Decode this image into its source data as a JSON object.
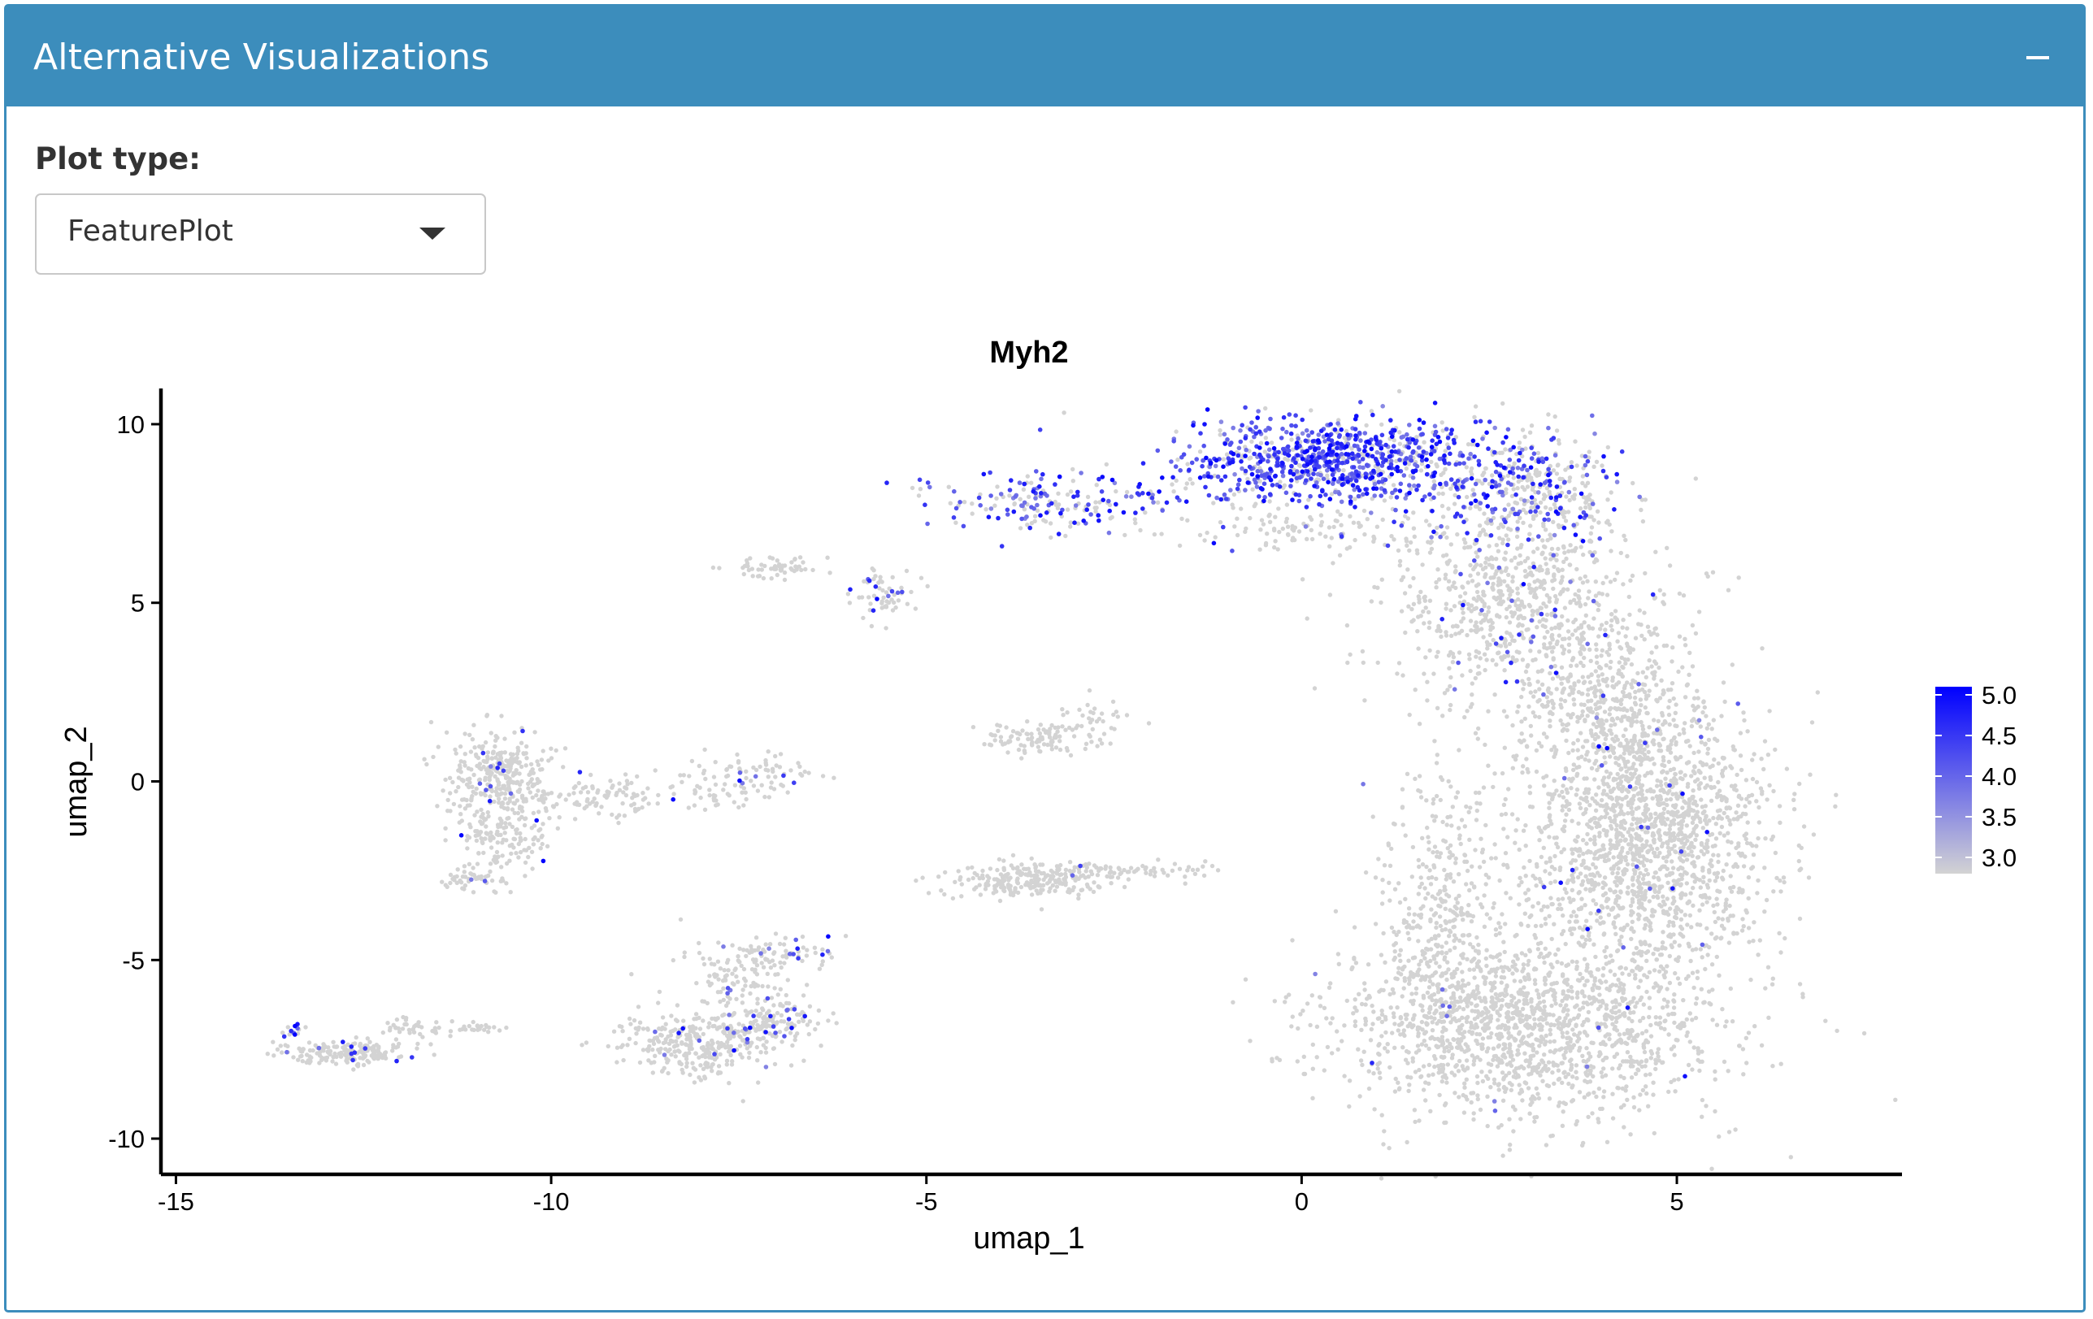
{
  "box": {
    "title": "Alternative Visualizations",
    "collapse_icon": "minus-icon",
    "header_color": "#3c8dbc"
  },
  "controls": {
    "plot_type_label": "Plot type:",
    "plot_type_value": "FeaturePlot",
    "dropdown_icon": "caret-down-icon"
  },
  "chart_data": {
    "type": "scatter",
    "title": "Myh2",
    "xlabel": "umap_1",
    "ylabel": "umap_2",
    "xlim": [
      -15.2,
      8.0
    ],
    "ylim": [
      -11.0,
      11.0
    ],
    "x_ticks": [
      -15,
      -10,
      -5,
      0,
      5
    ],
    "y_ticks": [
      10,
      5,
      0,
      -5,
      -10
    ],
    "x_tick_labels": [
      "-15",
      "-10",
      "-5",
      "0",
      "5"
    ],
    "y_tick_labels": [
      "10",
      "5",
      "0",
      "-5",
      "-10"
    ],
    "grid": false,
    "legend_placement": "right",
    "color_scale": {
      "low_color": "#d3d3d3",
      "high_color": "#0000ff",
      "min": 2.8,
      "max": 5.1,
      "ticks": [
        5.0,
        4.5,
        4.0,
        3.5,
        3.0
      ],
      "tick_labels": [
        "5.0",
        "4.5",
        "4.0",
        "3.5",
        "3.0"
      ]
    },
    "clusters": [
      {
        "cx": 0.5,
        "cy": 9.0,
        "sx": 0.95,
        "sy": 0.6,
        "n": 900,
        "expr_frac": 0.75
      },
      {
        "cx": -3.2,
        "cy": 7.8,
        "sx": 0.9,
        "sy": 0.4,
        "n": 200,
        "expr_frac": 0.6
      },
      {
        "cx": 3.0,
        "cy": 8.3,
        "sx": 0.6,
        "sy": 0.8,
        "n": 350,
        "expr_frac": 0.4
      },
      {
        "cx": 2.9,
        "cy": 5.0,
        "sx": 0.9,
        "sy": 1.4,
        "n": 800,
        "expr_frac": 0.05
      },
      {
        "cx": 4.1,
        "cy": 2.0,
        "sx": 0.6,
        "sy": 1.2,
        "n": 500,
        "expr_frac": 0.02
      },
      {
        "cx": 4.6,
        "cy": -1.7,
        "sx": 0.85,
        "sy": 1.8,
        "n": 1600,
        "expr_frac": 0.01
      },
      {
        "cx": 3.0,
        "cy": -6.8,
        "sx": 1.3,
        "sy": 1.3,
        "n": 1600,
        "expr_frac": 0.005
      },
      {
        "cx": 1.9,
        "cy": -3.5,
        "sx": 0.4,
        "sy": 2.0,
        "n": 350,
        "expr_frac": 0.005
      },
      {
        "cx": -7.0,
        "cy": 6.0,
        "sx": 0.35,
        "sy": 0.15,
        "n": 60,
        "expr_frac": 0.0
      },
      {
        "cx": -5.6,
        "cy": 5.2,
        "sx": 0.2,
        "sy": 0.35,
        "n": 60,
        "expr_frac": 0.15
      },
      {
        "cx": -10.7,
        "cy": 0.2,
        "sx": 0.35,
        "sy": 0.6,
        "n": 300,
        "expr_frac": 0.02
      },
      {
        "cx": -10.6,
        "cy": -1.5,
        "sx": 0.3,
        "sy": 0.6,
        "n": 150,
        "expr_frac": 0.02
      },
      {
        "cx": -11.1,
        "cy": -2.8,
        "sx": 0.25,
        "sy": 0.2,
        "n": 40,
        "expr_frac": 0.1
      },
      {
        "cx": -9.2,
        "cy": -0.4,
        "sx": 0.8,
        "sy": 0.3,
        "n": 120,
        "expr_frac": 0.02
      },
      {
        "cx": -7.5,
        "cy": 0.2,
        "sx": 0.5,
        "sy": 0.3,
        "n": 90,
        "expr_frac": 0.05
      },
      {
        "cx": -3.6,
        "cy": -2.8,
        "sx": 0.55,
        "sy": 0.25,
        "n": 220,
        "expr_frac": 0.02
      },
      {
        "cx": -2.6,
        "cy": -2.5,
        "sx": 0.7,
        "sy": 0.12,
        "n": 80,
        "expr_frac": 0.0
      },
      {
        "cx": -3.5,
        "cy": 1.2,
        "sx": 0.4,
        "sy": 0.2,
        "n": 100,
        "expr_frac": 0.0
      },
      {
        "cx": -2.8,
        "cy": 1.8,
        "sx": 0.3,
        "sy": 0.3,
        "n": 30,
        "expr_frac": 0.0
      },
      {
        "cx": -8.1,
        "cy": -7.3,
        "sx": 0.5,
        "sy": 0.45,
        "n": 300,
        "expr_frac": 0.03
      },
      {
        "cx": -7.2,
        "cy": -6.8,
        "sx": 0.4,
        "sy": 0.4,
        "n": 150,
        "expr_frac": 0.12
      },
      {
        "cx": -7.4,
        "cy": -5.3,
        "sx": 0.45,
        "sy": 0.5,
        "n": 120,
        "expr_frac": 0.03
      },
      {
        "cx": -6.8,
        "cy": -4.8,
        "sx": 0.3,
        "sy": 0.2,
        "n": 40,
        "expr_frac": 0.2
      },
      {
        "cx": -12.7,
        "cy": -7.6,
        "sx": 0.45,
        "sy": 0.17,
        "n": 180,
        "expr_frac": 0.05
      },
      {
        "cx": -11.8,
        "cy": -6.9,
        "sx": 0.3,
        "sy": 0.15,
        "n": 40,
        "expr_frac": 0.0
      },
      {
        "cx": -13.4,
        "cy": -6.9,
        "sx": 0.1,
        "sy": 0.12,
        "n": 14,
        "expr_frac": 0.7
      },
      {
        "cx": -11.0,
        "cy": -6.9,
        "sx": 0.25,
        "sy": 0.08,
        "n": 20,
        "expr_frac": 0.0
      },
      {
        "cx": 0.4,
        "cy": 7.0,
        "sx": 1.2,
        "sy": 0.3,
        "n": 120,
        "expr_frac": 0.05
      }
    ]
  }
}
